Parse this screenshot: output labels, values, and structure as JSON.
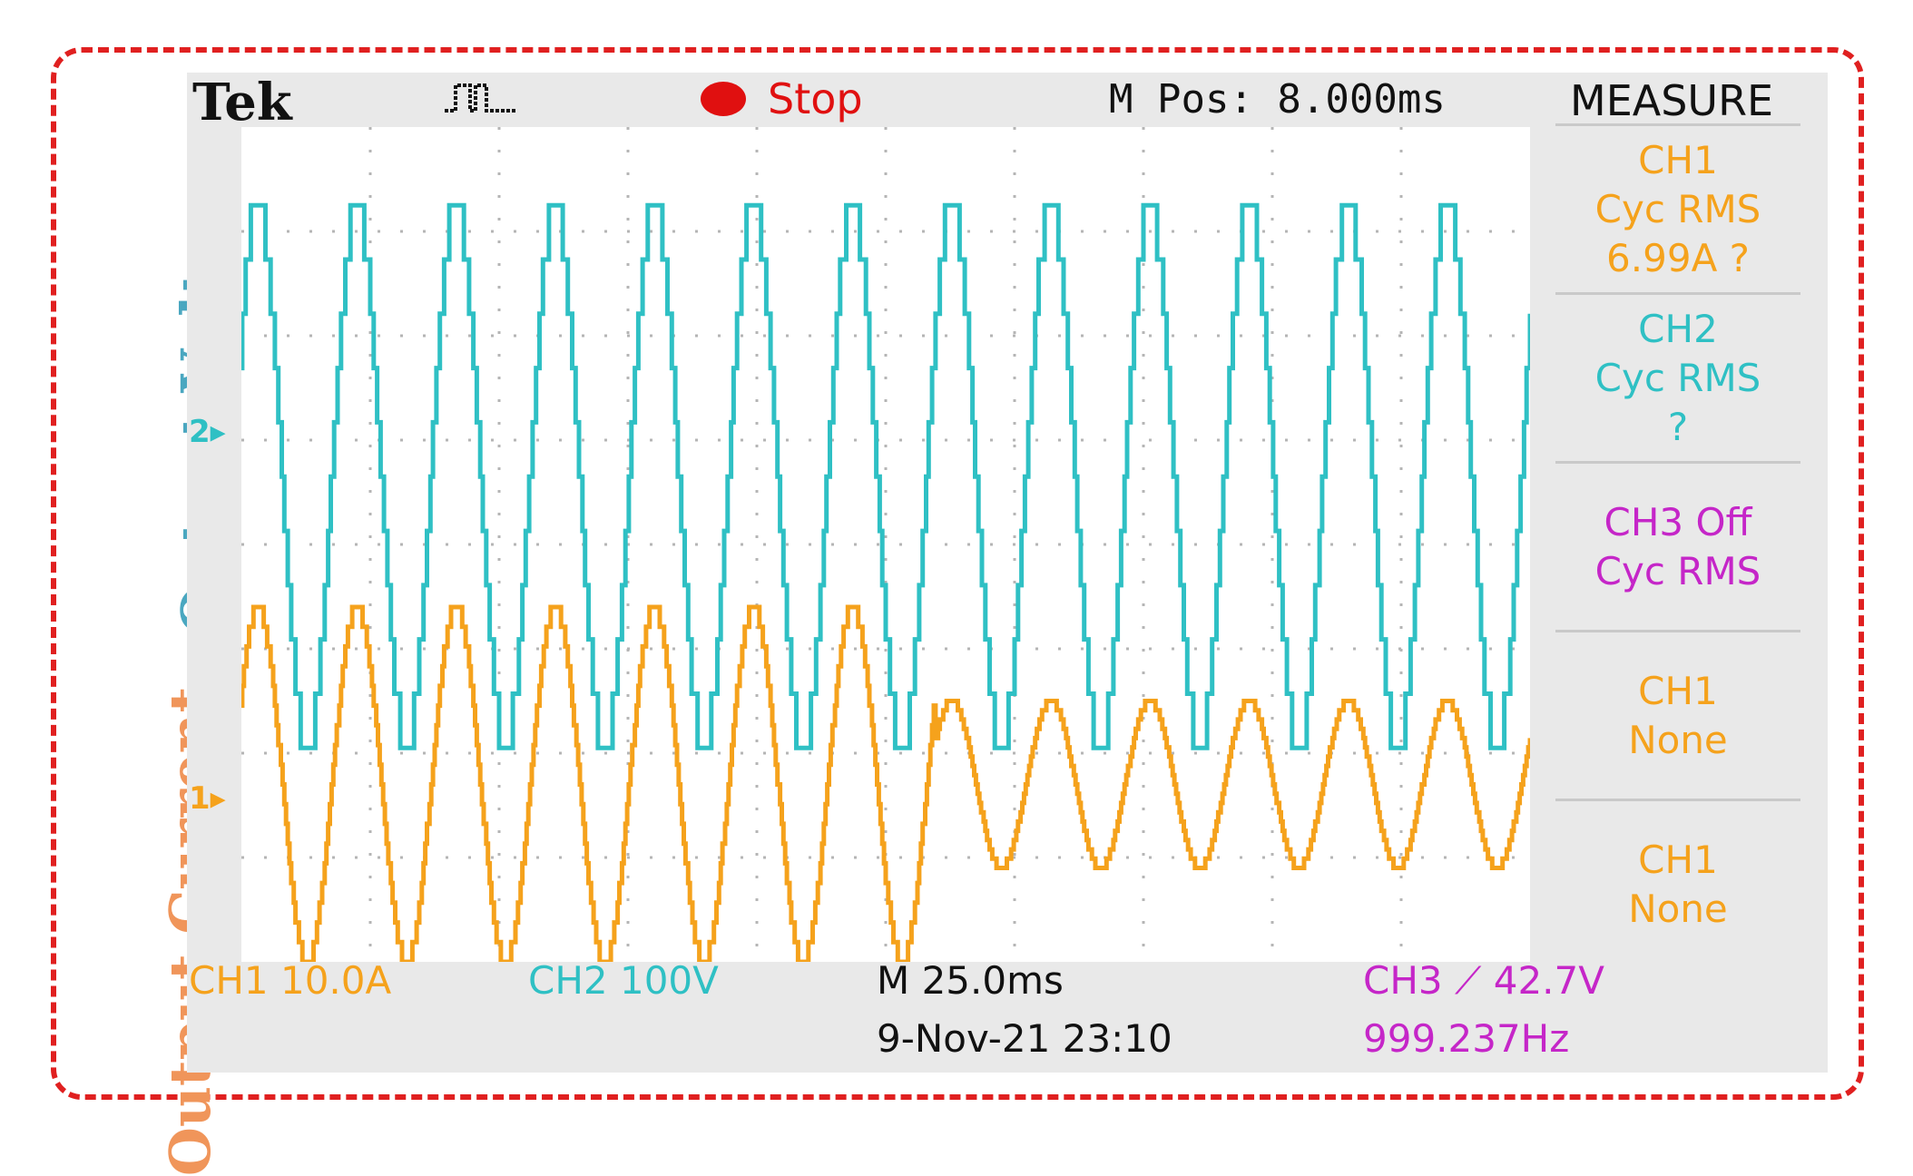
{
  "labels": {
    "voltage": "Output Voltage",
    "current": "Output Current"
  },
  "header": {
    "brand": "Tek",
    "status": "Stop",
    "mpos": "M Pos: 8.000ms",
    "measure_title": "MEASURE"
  },
  "markers": {
    "ch2": "2▸",
    "ch1": "1▸"
  },
  "measure": [
    {
      "lines": [
        "CH1",
        "Cyc RMS",
        "6.99A ?"
      ],
      "color": "orange"
    },
    {
      "lines": [
        "CH2",
        "Cyc RMS",
        "?"
      ],
      "color": "cyan"
    },
    {
      "lines": [
        "CH3 Off",
        "Cyc RMS"
      ],
      "color": "magenta"
    },
    {
      "lines": [
        "CH1",
        "None"
      ],
      "color": "orange"
    },
    {
      "lines": [
        "CH1",
        "None"
      ],
      "color": "orange"
    }
  ],
  "footer": {
    "ch1": "CH1  10.0A",
    "ch2": "CH2  100V",
    "timebase": "M 25.0ms",
    "date": "9-Nov-21 23:10",
    "ch3": "CH3 ⟋ 42.7V",
    "freq": "999.237Hz"
  },
  "colors": {
    "voltage_trace": "#2fc0c4",
    "current_trace": "#f5a21c",
    "ch3": "#c526c8",
    "stop": "#e01010",
    "frame": "#e02020"
  },
  "chart_data": {
    "type": "line",
    "series": [
      {
        "name": "CH2",
        "cycles": 13,
        "waveform": "stepped multilevel sine",
        "amplitude_divisions": [
          2.6,
          2.6
        ]
      },
      {
        "name": "CH1",
        "cycles": 13,
        "waveform": "stepped sine",
        "amplitude_divisions": [
          [
            1.7,
            1.7,
            1.7,
            1.7,
            1.7,
            1.7,
            1.7
          ],
          [
            0.8,
            0.8,
            0.8,
            0.8,
            0.8,
            0.8
          ]
        ]
      }
    ],
    "grid": true,
    "x_divisions": 10,
    "y_divisions": 8
  }
}
